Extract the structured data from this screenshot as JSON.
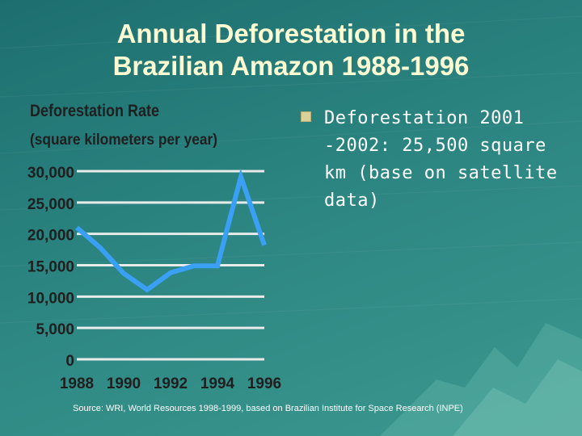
{
  "slide": {
    "title_line1": "Annual Deforestation in the",
    "title_line2": "Brazilian Amazon 1988-1996",
    "bullet_text": "Deforestation 2001 -2002: 25,500 square km (base on satellite data)",
    "source": "Source: WRI, World Resources 1998-1999, based on Brazilian Institute for Space Research (INPE)"
  },
  "colors": {
    "background": "#2b8480",
    "title": "#fdfbd2",
    "line": "#3aa0f5",
    "gridline": "#e8ebe9",
    "label": "#1f1f1f"
  },
  "chart_data": {
    "type": "line",
    "title": "Deforestation Rate",
    "subtitle": "(square kilometers per year)",
    "xlabel": "",
    "ylabel": "",
    "x": [
      1988,
      1989,
      1990,
      1991,
      1992,
      1993,
      1994,
      1995,
      1996
    ],
    "x_tick_labels": [
      "1988",
      "1990",
      "1992",
      "1994",
      "1996"
    ],
    "x_ticks": [
      1988,
      1990,
      1992,
      1994,
      1996
    ],
    "y_tick_labels": [
      "30,000",
      "25,000",
      "20,000",
      "15,000",
      "10,000",
      "5,000",
      "0"
    ],
    "y_ticks": [
      30000,
      25000,
      20000,
      15000,
      10000,
      5000,
      0
    ],
    "xlim": [
      1988,
      1996
    ],
    "ylim": [
      0,
      30000
    ],
    "grid": true,
    "series": [
      {
        "values": [
          21000,
          17800,
          13700,
          11100,
          13800,
          14900,
          14900,
          29100,
          18200
        ]
      }
    ]
  }
}
